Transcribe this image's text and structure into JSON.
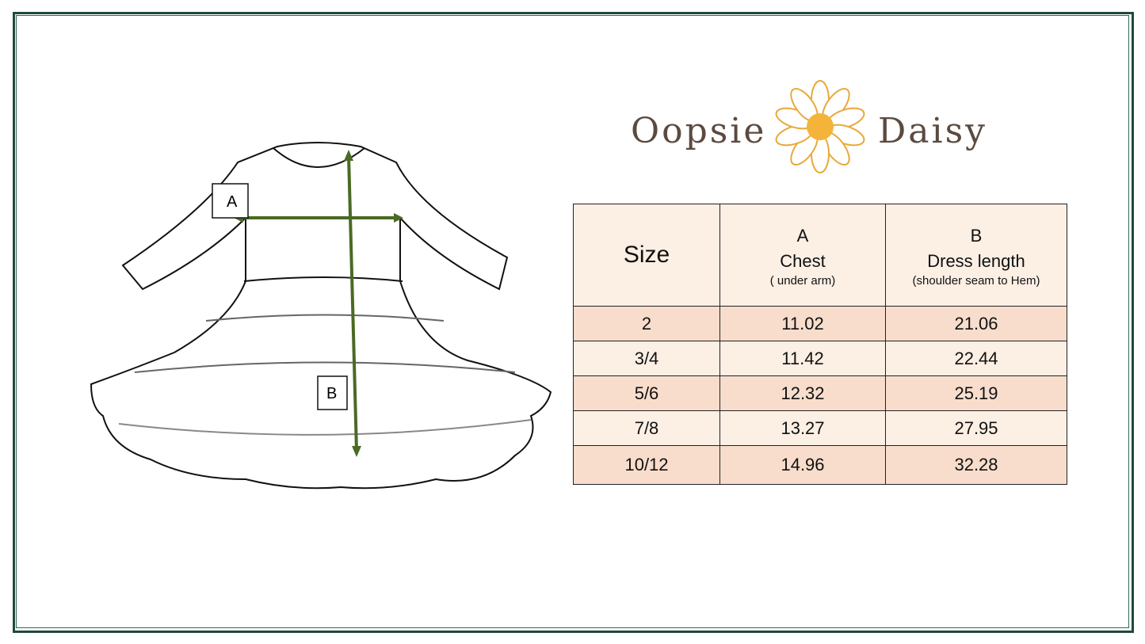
{
  "brand": {
    "name_left": "Oopsie",
    "name_right": "Daisy"
  },
  "diagram": {
    "label_a": "A",
    "label_b": "B",
    "arrow_color": "#4a6a25"
  },
  "table": {
    "header": {
      "size": "Size",
      "chest": {
        "letter": "A",
        "title": "Chest",
        "note": "( under arm)"
      },
      "length": {
        "letter": "B",
        "title": "Dress length",
        "note": "(shoulder seam to Hem)"
      }
    },
    "rows": [
      {
        "size": "2",
        "chest": "11.02",
        "length": "21.06"
      },
      {
        "size": "3/4",
        "chest": "11.42",
        "length": "22.44"
      },
      {
        "size": "5/6",
        "chest": "12.32",
        "length": "25.19"
      },
      {
        "size": "7/8",
        "chest": "13.27",
        "length": "27.95"
      },
      {
        "size": "10/12",
        "chest": "14.96",
        "length": "32.28"
      }
    ]
  },
  "colors": {
    "frame": "#1f4a3a",
    "header_bg": "#fcefe4",
    "row_dark": "#f8ddcc",
    "row_light": "#fcefe4"
  }
}
